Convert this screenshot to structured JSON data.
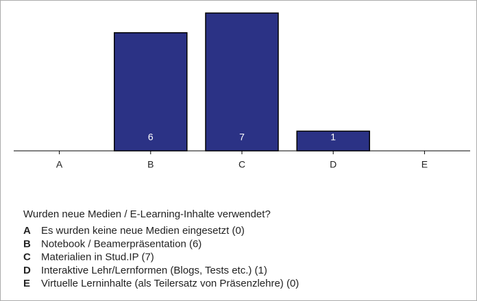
{
  "chart_data": {
    "type": "bar",
    "title": "Wurden neue Medien / E-Learning-Inhalte verwendet?",
    "categories": [
      "A",
      "B",
      "C",
      "D",
      "E"
    ],
    "values": [
      0,
      6,
      7,
      1,
      0
    ],
    "color": "#2b3285",
    "ylim": [
      0,
      7
    ],
    "legend": [
      {
        "key": "A",
        "text": "Es wurden keine neue Medien eingesetzt (0)"
      },
      {
        "key": "B",
        "text": "Notebook / Beamerpräsentation (6)"
      },
      {
        "key": "C",
        "text": "Materialien in Stud.IP (7)"
      },
      {
        "key": "D",
        "text": "Interaktive Lehr/Lernformen (Blogs, Tests etc.) (1)"
      },
      {
        "key": "E",
        "text": "Virtuelle Lerninhalte (als Teilersatz von Präsenzlehre) (0)"
      }
    ]
  }
}
